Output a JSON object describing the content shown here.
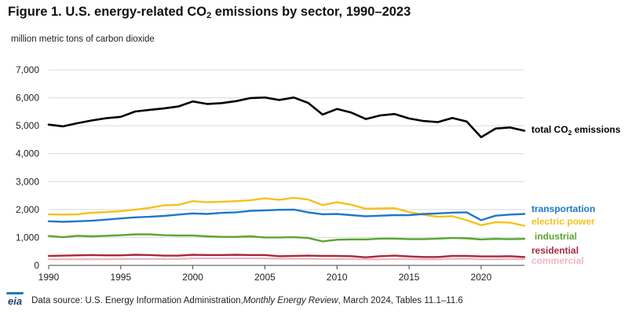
{
  "title": {
    "prefix": "Figure 1. U.S. energy-related CO",
    "subscript": "2",
    "suffix": " emissions by sector, 1990–2023"
  },
  "footer": {
    "logo_text": "eia",
    "source_prefix": "Data source: U.S. Energy Information Administration, ",
    "source_italic": "Monthly Energy Review",
    "source_suffix": ", March 2024, Tables 11.1–11.6"
  },
  "chart_data": {
    "type": "line",
    "title": "Figure 1. U.S. energy-related CO2 emissions by sector, 1990–2023",
    "xlabel": "",
    "ylabel": "million metric tons of carbon dioxide",
    "xlim": [
      1990,
      2023
    ],
    "ylim": [
      0,
      7000
    ],
    "x_ticks": [
      1990,
      1995,
      2000,
      2005,
      2010,
      2015,
      2020
    ],
    "y_ticks": [
      0,
      1000,
      2000,
      3000,
      4000,
      5000,
      6000,
      7000
    ],
    "y_tick_labels": [
      "0",
      "1,000",
      "2,000",
      "3,000",
      "4,000",
      "5,000",
      "6,000",
      "7,000"
    ],
    "grid": "horizontal",
    "legend": "direct labels at right",
    "x": [
      1990,
      1991,
      1992,
      1993,
      1994,
      1995,
      1996,
      1997,
      1998,
      1999,
      2000,
      2001,
      2002,
      2003,
      2004,
      2005,
      2006,
      2007,
      2008,
      2009,
      2010,
      2011,
      2012,
      2013,
      2014,
      2015,
      2016,
      2017,
      2018,
      2019,
      2020,
      2021,
      2022,
      2023
    ],
    "series": [
      {
        "name": "total CO2 emissions",
        "label_main": "total CO",
        "label_sub": "2",
        "label_tail": " emissions",
        "color": "#000000",
        "values": [
          5040,
          4980,
          5090,
          5190,
          5270,
          5320,
          5510,
          5570,
          5620,
          5690,
          5870,
          5780,
          5810,
          5880,
          5990,
          6010,
          5920,
          6010,
          5820,
          5400,
          5600,
          5470,
          5240,
          5370,
          5420,
          5260,
          5170,
          5130,
          5280,
          5150,
          4590,
          4900,
          4940,
          4820
        ]
      },
      {
        "name": "transportation",
        "color": "#1f78c8",
        "values": [
          1580,
          1560,
          1580,
          1600,
          1640,
          1680,
          1720,
          1740,
          1770,
          1820,
          1860,
          1840,
          1880,
          1900,
          1950,
          1970,
          1990,
          2000,
          1900,
          1830,
          1840,
          1800,
          1760,
          1780,
          1800,
          1800,
          1840,
          1860,
          1890,
          1900,
          1620,
          1780,
          1820,
          1840
        ]
      },
      {
        "name": "electric power",
        "color": "#f5c21b",
        "values": [
          1830,
          1820,
          1830,
          1890,
          1910,
          1940,
          2000,
          2060,
          2150,
          2170,
          2300,
          2260,
          2280,
          2300,
          2330,
          2400,
          2350,
          2420,
          2360,
          2160,
          2260,
          2170,
          2030,
          2040,
          2050,
          1910,
          1810,
          1740,
          1760,
          1620,
          1440,
          1550,
          1530,
          1420
        ]
      },
      {
        "name": "industrial",
        "color": "#5aa532",
        "values": [
          1050,
          1010,
          1060,
          1040,
          1060,
          1080,
          1110,
          1110,
          1080,
          1070,
          1070,
          1040,
          1020,
          1020,
          1040,
          1000,
          1000,
          1010,
          980,
          860,
          920,
          930,
          930,
          960,
          960,
          940,
          940,
          960,
          980,
          970,
          930,
          950,
          940,
          950
        ]
      },
      {
        "name": "residential",
        "color": "#a42a3c",
        "values": [
          340,
          350,
          360,
          370,
          360,
          360,
          380,
          370,
          350,
          350,
          380,
          370,
          370,
          380,
          370,
          370,
          330,
          340,
          350,
          340,
          340,
          330,
          290,
          330,
          350,
          320,
          300,
          300,
          340,
          340,
          320,
          320,
          330,
          300
        ]
      },
      {
        "name": "commercial",
        "color": "#f2b5be",
        "values": [
          220,
          220,
          220,
          220,
          220,
          230,
          230,
          230,
          230,
          230,
          250,
          250,
          250,
          250,
          250,
          250,
          240,
          240,
          240,
          230,
          230,
          230,
          220,
          220,
          230,
          230,
          220,
          220,
          240,
          240,
          220,
          220,
          230,
          230
        ]
      }
    ]
  }
}
